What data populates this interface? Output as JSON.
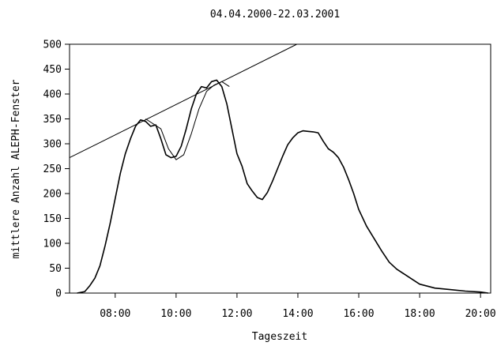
{
  "chart_data": {
    "type": "line",
    "title": "04.04.2000-22.03.2001",
    "xlabel": "Tageszeit",
    "ylabel": "mittlere Anzahl ALEPH-Fenster",
    "xlim": [
      "06:30",
      "20:20"
    ],
    "ylim": [
      0,
      500
    ],
    "grid": false,
    "x_ticks": [
      "08:00",
      "10:00",
      "12:00",
      "14:00",
      "16:00",
      "18:00",
      "20:00"
    ],
    "y_ticks": [
      0,
      50,
      100,
      150,
      200,
      250,
      300,
      350,
      400,
      450,
      500
    ],
    "series": [
      {
        "x": [
          "06:45",
          "07:00",
          "07:10",
          "07:20",
          "07:30",
          "07:40",
          "07:50",
          "08:00",
          "08:10",
          "08:20",
          "08:30",
          "08:40",
          "08:50",
          "09:00",
          "09:10",
          "09:20",
          "09:30",
          "09:40",
          "09:50",
          "10:00",
          "10:10",
          "10:20",
          "10:30",
          "10:40",
          "10:50",
          "11:00",
          "11:10",
          "11:20",
          "11:30",
          "11:40",
          "11:50",
          "12:00",
          "12:10",
          "12:20",
          "12:30",
          "12:40",
          "12:50",
          "13:00",
          "13:10",
          "13:20",
          "13:30",
          "13:40",
          "13:50",
          "14:00",
          "14:10",
          "14:20",
          "14:30",
          "14:40",
          "14:50",
          "15:00",
          "15:10",
          "15:20",
          "15:30",
          "15:40",
          "15:50",
          "16:00",
          "16:15",
          "16:30",
          "16:45",
          "17:00",
          "17:15",
          "17:30",
          "17:45",
          "18:00",
          "18:30",
          "19:00",
          "19:30",
          "20:00",
          "20:15"
        ],
        "values": [
          0,
          3,
          15,
          30,
          55,
          95,
          140,
          190,
          240,
          280,
          310,
          335,
          348,
          345,
          335,
          338,
          310,
          278,
          272,
          275,
          295,
          330,
          370,
          400,
          415,
          412,
          425,
          428,
          415,
          380,
          330,
          280,
          255,
          220,
          205,
          192,
          188,
          202,
          225,
          250,
          275,
          298,
          312,
          322,
          326,
          325,
          324,
          322,
          305,
          290,
          283,
          272,
          253,
          228,
          200,
          168,
          135,
          110,
          85,
          62,
          48,
          38,
          28,
          18,
          10,
          7,
          4,
          2,
          0
        ]
      },
      {
        "x": [
          "09:00",
          "09:30",
          "09:45",
          "10:00",
          "10:15",
          "10:30",
          "10:45",
          "11:00",
          "11:15",
          "11:30",
          "11:45"
        ],
        "values": [
          350,
          330,
          290,
          268,
          278,
          320,
          370,
          405,
          418,
          425,
          415
        ]
      },
      {
        "x": [
          "06:30",
          "13:58"
        ],
        "values": [
          272,
          500
        ]
      }
    ]
  }
}
